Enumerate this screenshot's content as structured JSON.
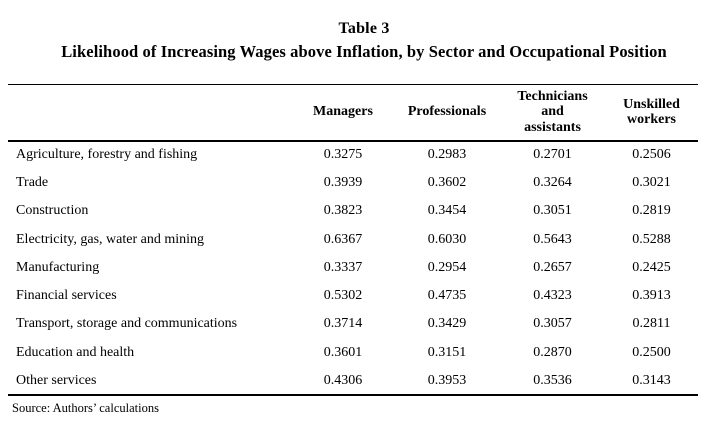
{
  "page": {
    "title": "Table 3",
    "subtitle": "Likelihood of Increasing Wages above Inflation, by Sector and Occupational Position",
    "source_note": "Source: Authors’ calculations"
  },
  "table": {
    "corner_label": "",
    "columns": [
      "Managers",
      "Professionals",
      "Technicians\nand\nassistants",
      "Unskilled\nworkers"
    ],
    "rows": [
      {
        "label": "Agriculture, forestry and fishing",
        "values": [
          "0.3275",
          "0.2983",
          "0.2701",
          "0.2506"
        ]
      },
      {
        "label": "Trade",
        "values": [
          "0.3939",
          "0.3602",
          "0.3264",
          "0.3021"
        ]
      },
      {
        "label": "Construction",
        "values": [
          "0.3823",
          "0.3454",
          "0.3051",
          "0.2819"
        ]
      },
      {
        "label": "Electricity, gas, water and mining",
        "values": [
          "0.6367",
          "0.6030",
          "0.5643",
          "0.5288"
        ]
      },
      {
        "label": "Manufacturing",
        "values": [
          "0.3337",
          "0.2954",
          "0.2657",
          "0.2425"
        ]
      },
      {
        "label": "Financial services",
        "values": [
          "0.5302",
          "0.4735",
          "0.4323",
          "0.3913"
        ]
      },
      {
        "label": "Transport, storage and communications",
        "values": [
          "0.3714",
          "0.3429",
          "0.3057",
          "0.2811"
        ]
      },
      {
        "label": "Education and health",
        "values": [
          "0.3601",
          "0.3151",
          "0.2870",
          "0.2500"
        ]
      },
      {
        "label": "Other services",
        "values": [
          "0.4306",
          "0.3953",
          "0.3536",
          "0.3143"
        ]
      }
    ]
  },
  "chart_data": {
    "type": "table",
    "title": "Table 3 — Likelihood of Increasing Wages above Inflation, by Sector and Occupational Position",
    "categories": [
      "Agriculture, forestry and fishing",
      "Trade",
      "Construction",
      "Electricity, gas, water and mining",
      "Manufacturing",
      "Financial services",
      "Transport, storage and communications",
      "Education and health",
      "Other services"
    ],
    "series": [
      {
        "name": "Managers",
        "values": [
          0.3275,
          0.3939,
          0.3823,
          0.6367,
          0.3337,
          0.5302,
          0.3714,
          0.3601,
          0.4306
        ]
      },
      {
        "name": "Professionals",
        "values": [
          0.2983,
          0.3602,
          0.3454,
          0.603,
          0.2954,
          0.4735,
          0.3429,
          0.3151,
          0.3953
        ]
      },
      {
        "name": "Technicians and assistants",
        "values": [
          0.2701,
          0.3264,
          0.3051,
          0.5643,
          0.2657,
          0.4323,
          0.3057,
          0.287,
          0.3536
        ]
      },
      {
        "name": "Unskilled workers",
        "values": [
          0.2506,
          0.3021,
          0.2819,
          0.5288,
          0.2425,
          0.3913,
          0.2811,
          0.25,
          0.3143
        ]
      }
    ],
    "source": "Source: Authors’ calculations"
  }
}
